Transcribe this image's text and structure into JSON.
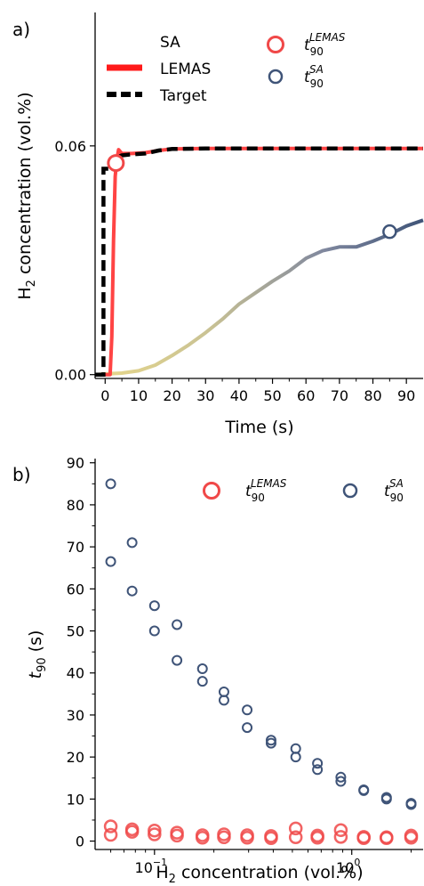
{
  "chart_data": [
    {
      "type": "line",
      "panel_label": "a)",
      "xlabel": "Time (s)",
      "ylabel_main": "H",
      "ylabel_sub": "2",
      "ylabel_rest": " concentration (vol.%)",
      "xlim": [
        -3,
        95
      ],
      "ylim": [
        -0.001,
        0.095
      ],
      "xticks": [
        0,
        10,
        20,
        30,
        40,
        50,
        60,
        70,
        80,
        90
      ],
      "xtick_labels": [
        "0",
        "10",
        "20",
        "30",
        "40",
        "50",
        "60",
        "70",
        "80",
        "90"
      ],
      "yticks": [
        0.0,
        0.06
      ],
      "ytick_labels": [
        "0.00",
        "0.06"
      ],
      "legend_lines": [
        {
          "label": "SA",
          "style": "gradient"
        },
        {
          "label": "LEMAS",
          "color": "#ff1a1a"
        },
        {
          "label": "Target",
          "color": "#000000",
          "dash": true
        }
      ],
      "legend_markers": [
        {
          "label_base": "t",
          "label_sub": "90",
          "label_sup": "LEMAS",
          "color": "#f04848"
        },
        {
          "label_base": "t",
          "label_sub": "90",
          "label_sup": "SA",
          "color": "#3f5478"
        }
      ],
      "series": [
        {
          "name": "Target",
          "x": [
            -3,
            -0.5,
            -0.5,
            2,
            2,
            5,
            8,
            12,
            16,
            20,
            30,
            40,
            60,
            80,
            95
          ],
          "y": [
            0.0,
            0.0,
            0.054,
            0.054,
            0.0565,
            0.0575,
            0.0578,
            0.058,
            0.0588,
            0.0592,
            0.0593,
            0.0593,
            0.0593,
            0.0593,
            0.0593
          ]
        },
        {
          "name": "LEMAS",
          "x": [
            -3,
            0,
            1.5,
            2,
            2.5,
            3,
            3.5,
            4,
            5,
            8,
            12,
            16,
            20,
            30,
            40,
            50,
            60,
            70,
            80,
            90,
            95
          ],
          "y": [
            0.0,
            0.0,
            0.0,
            0.01,
            0.035,
            0.052,
            0.0565,
            0.059,
            0.058,
            0.058,
            0.0582,
            0.0588,
            0.0592,
            0.0593,
            0.0593,
            0.0593,
            0.0593,
            0.0593,
            0.0593,
            0.0593,
            0.0593
          ]
        },
        {
          "name": "SA",
          "x": [
            -3,
            0,
            5,
            10,
            15,
            20,
            25,
            30,
            35,
            40,
            45,
            50,
            55,
            60,
            65,
            70,
            75,
            80,
            85,
            90,
            95
          ],
          "y": [
            0.0,
            0.0002,
            0.0004,
            0.001,
            0.0025,
            0.005,
            0.0078,
            0.011,
            0.0145,
            0.0185,
            0.0215,
            0.0245,
            0.0272,
            0.0305,
            0.0325,
            0.0335,
            0.0335,
            0.035,
            0.0368,
            0.039,
            0.0405
          ]
        }
      ],
      "t90_points": [
        {
          "series": "LEMAS",
          "x": 3.2,
          "y": 0.0555
        },
        {
          "series": "SA",
          "x": 85,
          "y": 0.0375
        }
      ]
    },
    {
      "type": "scatter",
      "panel_label": "b)",
      "xlabel_main": "H",
      "xlabel_sub": "2",
      "xlabel_rest": " concentration (vol.%)",
      "ylabel_base": "t",
      "ylabel_sub": "90",
      "ylabel_rest": " (s)",
      "xscale": "log",
      "xlim": [
        0.05,
        2.3
      ],
      "ylim": [
        -2,
        91
      ],
      "yticks": [
        0,
        10,
        20,
        30,
        40,
        50,
        60,
        70,
        80,
        90
      ],
      "ytick_labels": [
        "0",
        "10",
        "20",
        "30",
        "40",
        "50",
        "60",
        "70",
        "80",
        "90"
      ],
      "xtick_major": [
        {
          "base": "10",
          "exp": "−1",
          "value": 0.1
        },
        {
          "base": "10",
          "exp": "0",
          "value": 1
        }
      ],
      "legend": [
        {
          "label_base": "t",
          "label_sub": "90",
          "label_sup": "LEMAS",
          "color": "#f04848"
        },
        {
          "label_base": "t",
          "label_sub": "90",
          "label_sup": "SA",
          "color": "#3f5478"
        }
      ],
      "series": [
        {
          "name": "LEMAS",
          "x": [
            0.06,
            0.06,
            0.077,
            0.077,
            0.1,
            0.1,
            0.13,
            0.13,
            0.175,
            0.175,
            0.225,
            0.225,
            0.295,
            0.295,
            0.39,
            0.39,
            0.52,
            0.52,
            0.67,
            0.67,
            0.88,
            0.88,
            1.15,
            1.15,
            1.5,
            1.5,
            2.0,
            2.0
          ],
          "y": [
            3.5,
            1.5,
            2.8,
            2.2,
            2.5,
            1.6,
            2.0,
            1.3,
            1.4,
            0.8,
            1.6,
            0.9,
            1.4,
            0.8,
            1.2,
            0.7,
            3.0,
            0.9,
            1.3,
            0.8,
            2.6,
            1.0,
            1.0,
            0.7,
            0.9,
            0.7,
            1.3,
            0.8
          ]
        },
        {
          "name": "SA",
          "x": [
            0.06,
            0.06,
            0.077,
            0.077,
            0.1,
            0.1,
            0.13,
            0.13,
            0.175,
            0.175,
            0.225,
            0.225,
            0.295,
            0.295,
            0.39,
            0.39,
            0.52,
            0.52,
            0.67,
            0.67,
            0.88,
            0.88,
            1.15,
            1.15,
            1.5,
            1.5,
            2.0,
            2.0
          ],
          "y": [
            85,
            66.5,
            71,
            59.5,
            56,
            50,
            51.5,
            43,
            41,
            38,
            35.5,
            33.5,
            31.2,
            27,
            24,
            23.3,
            22,
            20,
            18.5,
            17,
            15.2,
            14.2,
            12.2,
            12,
            10.4,
            10,
            9,
            8.7
          ]
        }
      ]
    }
  ]
}
